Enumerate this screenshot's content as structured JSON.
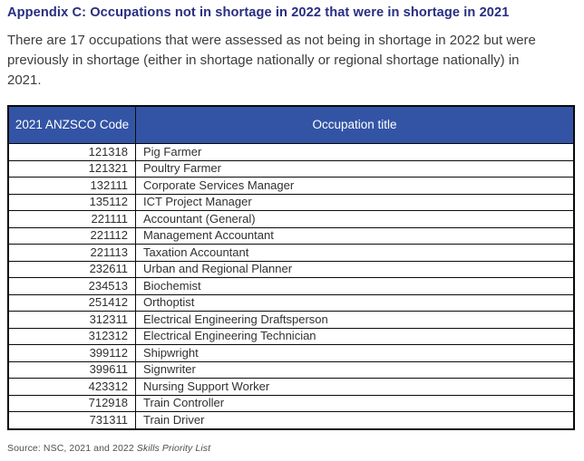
{
  "page": {
    "title": "Appendix C: Occupations not in shortage in 2022 that were in shortage in 2021",
    "intro": "There are 17 occupations that were assessed as not being in shortage in 2022 but were previously in shortage (either in shortage nationally or regional shortage nationally) in 2021.",
    "source_prefix": "Source: NSC, 2021 and 2022 ",
    "source_italic": "Skills Priority List"
  },
  "colors": {
    "header_bg": "#3354a5",
    "header_text": "#ffffff",
    "title_text": "#282e80",
    "body_text": "#3c3c3c",
    "table_border": "#0a0a0a"
  },
  "table": {
    "columns": [
      "2021 ANZSCO Code",
      "Occupation title"
    ],
    "rows": [
      {
        "code": "121318",
        "title": "Pig Farmer"
      },
      {
        "code": "121321",
        "title": "Poultry Farmer"
      },
      {
        "code": "132111",
        "title": "Corporate Services Manager"
      },
      {
        "code": "135112",
        "title": "ICT Project Manager"
      },
      {
        "code": "221111",
        "title": "Accountant (General)"
      },
      {
        "code": "221112",
        "title": "Management Accountant"
      },
      {
        "code": "221113",
        "title": "Taxation Accountant"
      },
      {
        "code": "232611",
        "title": "Urban and Regional Planner"
      },
      {
        "code": "234513",
        "title": "Biochemist"
      },
      {
        "code": "251412",
        "title": "Orthoptist"
      },
      {
        "code": "312311",
        "title": "Electrical Engineering Draftsperson"
      },
      {
        "code": "312312",
        "title": "Electrical Engineering Technician"
      },
      {
        "code": "399112",
        "title": "Shipwright"
      },
      {
        "code": "399611",
        "title": "Signwriter"
      },
      {
        "code": "423312",
        "title": "Nursing Support Worker"
      },
      {
        "code": "712918",
        "title": "Train Controller"
      },
      {
        "code": "731311",
        "title": "Train Driver"
      }
    ]
  }
}
